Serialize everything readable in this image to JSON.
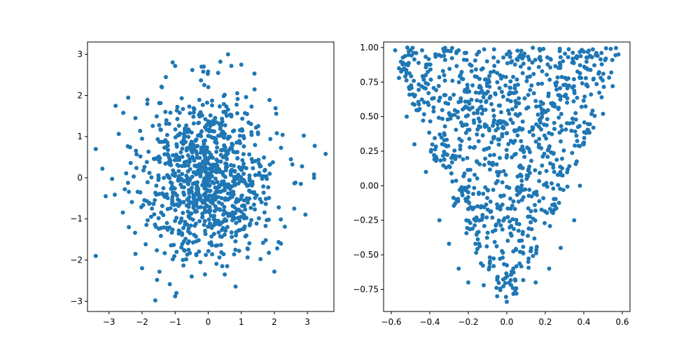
{
  "chart_data": [
    {
      "type": "scatter",
      "title": "",
      "xlabel": "",
      "ylabel": "",
      "xlim": [
        -3.65,
        3.8
      ],
      "ylim": [
        -3.25,
        3.3
      ],
      "x_ticks": [
        -3,
        -2,
        -1,
        0,
        1,
        2,
        3
      ],
      "x_tick_labels": [
        "−3",
        "−2",
        "−1",
        "0",
        "1",
        "2",
        "3"
      ],
      "y_ticks": [
        -3,
        -2,
        -1,
        0,
        1,
        2,
        3
      ],
      "y_tick_labels": [
        "−3",
        "−2",
        "−1",
        "0",
        "1",
        "2",
        "3"
      ],
      "grid": false,
      "marker_color": "#1f77b4",
      "distribution": "bivariate standard normal",
      "n_points": 1000,
      "series": [
        {
          "points": [
            [
              0.6,
              3.0
            ],
            [
              1.0,
              2.75
            ],
            [
              -1.0,
              2.72
            ],
            [
              -0.2,
              2.7
            ],
            [
              0.7,
              2.72
            ],
            [
              0.3,
              2.55
            ],
            [
              -2.8,
              1.75
            ],
            [
              -2.2,
              1.45
            ],
            [
              3.55,
              0.58
            ],
            [
              -3.4,
              0.7
            ],
            [
              -3.2,
              0.22
            ],
            [
              -3.1,
              -0.45
            ],
            [
              -3.4,
              -1.9
            ],
            [
              -1.6,
              -2.98
            ],
            [
              -1.0,
              -2.88
            ],
            [
              -0.5,
              -2.4
            ],
            [
              0.5,
              -2.35
            ],
            [
              2.0,
              -2.28
            ],
            [
              2.2,
              -1.6
            ],
            [
              3.2,
              0.0
            ],
            [
              3.2,
              0.08
            ],
            [
              2.8,
              -0.15
            ],
            [
              2.6,
              -0.75
            ],
            [
              2.5,
              0.45
            ],
            [
              1.4,
              2.15
            ],
            [
              -1.4,
              2.2
            ],
            [
              -2.0,
              0.95
            ],
            [
              -2.4,
              -1.2
            ],
            [
              -2.2,
              -1.85
            ],
            [
              -2.0,
              -2.2
            ]
          ]
        }
      ]
    },
    {
      "type": "scatter",
      "title": "",
      "xlabel": "",
      "ylabel": "",
      "xlim": [
        -0.64,
        0.64
      ],
      "ylim": [
        -0.91,
        1.04
      ],
      "x_ticks": [
        -0.6,
        -0.4,
        -0.2,
        0.0,
        0.2,
        0.4,
        0.6
      ],
      "x_tick_labels": [
        "−0.6",
        "−0.4",
        "−0.2",
        "0.0",
        "0.2",
        "0.4",
        "0.6"
      ],
      "y_ticks": [
        -0.75,
        -0.5,
        -0.25,
        0.0,
        0.25,
        0.5,
        0.75,
        1.0
      ],
      "y_tick_labels": [
        "−0.75",
        "−0.50",
        "−0.25",
        "0.00",
        "0.25",
        "0.50",
        "0.75",
        "1.00"
      ],
      "grid": false,
      "marker_color": "#1f77b4",
      "distribution": "uniform within V-shaped region",
      "n_points": 1000,
      "series": [
        {
          "points": [
            [
              -0.58,
              0.98
            ],
            [
              -0.56,
              0.85
            ],
            [
              -0.5,
              0.98
            ],
            [
              -0.44,
              0.98
            ],
            [
              -0.25,
              0.98
            ],
            [
              0.17,
              0.99
            ],
            [
              0.19,
              0.99
            ],
            [
              0.4,
              0.97
            ],
            [
              0.54,
              0.99
            ],
            [
              0.58,
              0.95
            ],
            [
              0.55,
              0.72
            ],
            [
              0.5,
              0.52
            ],
            [
              0.45,
              0.42
            ],
            [
              0.38,
              0.0
            ],
            [
              0.35,
              -0.25
            ],
            [
              0.28,
              -0.45
            ],
            [
              0.22,
              -0.6
            ],
            [
              0.15,
              -0.7
            ],
            [
              0.05,
              -0.78
            ],
            [
              0.0,
              -0.84
            ],
            [
              -0.05,
              -0.8
            ],
            [
              -0.12,
              -0.72
            ],
            [
              -0.2,
              -0.7
            ],
            [
              -0.25,
              -0.6
            ],
            [
              -0.3,
              -0.42
            ],
            [
              -0.35,
              -0.25
            ],
            [
              -0.42,
              0.1
            ],
            [
              -0.48,
              0.3
            ],
            [
              -0.52,
              0.5
            ],
            [
              -0.56,
              0.78
            ]
          ]
        }
      ]
    }
  ]
}
